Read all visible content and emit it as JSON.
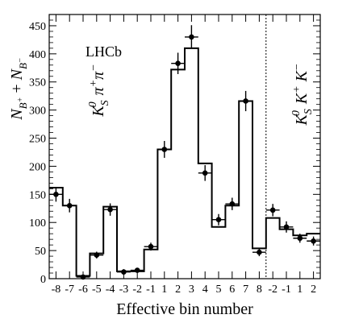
{
  "chart_data": {
    "type": "line",
    "ylabel": "N_{B⁺} + N_{B⁻}",
    "xlabel": "Effective bin number",
    "experiment_label": "LHCb",
    "region_labels": [
      "K⁰_S π⁺π⁻",
      "K⁰_S K⁺K⁻"
    ],
    "ylim": [
      0,
      470
    ],
    "yticks": [
      0,
      50,
      100,
      150,
      200,
      250,
      300,
      350,
      400,
      450
    ],
    "categories": [
      "-8",
      "-7",
      "-6",
      "-5",
      "-4",
      "-3",
      "-2",
      "-1",
      "1",
      "2",
      "3",
      "4",
      "5",
      "6",
      "7",
      "8",
      "-2",
      "-1",
      "1",
      "2"
    ],
    "series": [
      {
        "kind": "histogram",
        "values": [
          162,
          130,
          5,
          45,
          128,
          13,
          13,
          52,
          230,
          372,
          410,
          205,
          92,
          130,
          316,
          54,
          108,
          88,
          77,
          80
        ]
      },
      {
        "kind": "points",
        "values": [
          150,
          130,
          3,
          42,
          123,
          12,
          15,
          57,
          230,
          383,
          430,
          188,
          105,
          133,
          316,
          47,
          122,
          92,
          72,
          67
        ],
        "errors": [
          13,
          12,
          4,
          6,
          11,
          5,
          4,
          7,
          15,
          19,
          21,
          14,
          10,
          11,
          18,
          7,
          11,
          10,
          8,
          8
        ]
      }
    ]
  }
}
